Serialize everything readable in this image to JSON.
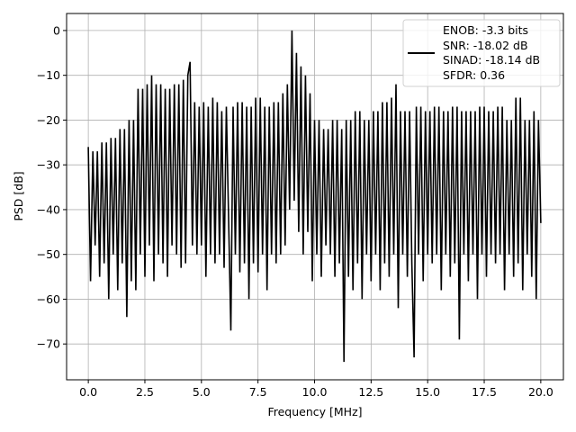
{
  "chart_data": {
    "type": "line",
    "title": "",
    "xlabel": "Frequency [MHz]",
    "ylabel": "PSD [dB]",
    "xlim": [
      -0.96,
      21.0
    ],
    "ylim": [
      -78,
      3.8
    ],
    "grid": true,
    "legend_placement": "top-right",
    "line_color": "#000000",
    "x_ticks": [
      "0.0",
      "2.5",
      "5.0",
      "7.5",
      "10.0",
      "12.5",
      "15.0",
      "17.5",
      "20.0"
    ],
    "x_tick_values": [
      0,
      2.5,
      5,
      7.5,
      10,
      12.5,
      15,
      17.5,
      20
    ],
    "y_ticks": [
      "0",
      "−10",
      "−20",
      "−30",
      "−40",
      "−50",
      "−60",
      "−70"
    ],
    "y_tick_values": [
      0,
      -10,
      -20,
      -30,
      -40,
      -50,
      -60,
      -70
    ],
    "legend": [
      "ENOB: -3.3 bits",
      "SNR: -18.02 dB",
      "SINAD: -18.14 dB",
      "SFDR: 0.36"
    ],
    "points": [
      [
        0,
        -26
      ],
      [
        0.1,
        -56
      ],
      [
        0.2,
        -27
      ],
      [
        0.3,
        -48
      ],
      [
        0.4,
        -27
      ],
      [
        0.5,
        -55
      ],
      [
        0.6,
        -25
      ],
      [
        0.7,
        -52
      ],
      [
        0.8,
        -25
      ],
      [
        0.9,
        -60
      ],
      [
        1.0,
        -24
      ],
      [
        1.1,
        -50
      ],
      [
        1.2,
        -24
      ],
      [
        1.3,
        -58
      ],
      [
        1.4,
        -22
      ],
      [
        1.5,
        -52
      ],
      [
        1.6,
        -22
      ],
      [
        1.7,
        -64
      ],
      [
        1.8,
        -20
      ],
      [
        1.9,
        -56
      ],
      [
        2.0,
        -20
      ],
      [
        2.1,
        -58
      ],
      [
        2.2,
        -13
      ],
      [
        2.3,
        -50
      ],
      [
        2.4,
        -13
      ],
      [
        2.5,
        -55
      ],
      [
        2.6,
        -12
      ],
      [
        2.7,
        -48
      ],
      [
        2.8,
        -10
      ],
      [
        2.9,
        -56
      ],
      [
        3.0,
        -12
      ],
      [
        3.1,
        -50
      ],
      [
        3.2,
        -12
      ],
      [
        3.3,
        -52
      ],
      [
        3.4,
        -13
      ],
      [
        3.5,
        -55
      ],
      [
        3.6,
        -13
      ],
      [
        3.7,
        -48
      ],
      [
        3.8,
        -12
      ],
      [
        3.9,
        -50
      ],
      [
        4.0,
        -12
      ],
      [
        4.1,
        -53
      ],
      [
        4.2,
        -11
      ],
      [
        4.3,
        -52
      ],
      [
        4.4,
        -10
      ],
      [
        4.5,
        -7
      ],
      [
        4.6,
        -48
      ],
      [
        4.7,
        -16
      ],
      [
        4.8,
        -50
      ],
      [
        4.9,
        -17
      ],
      [
        5.0,
        -48
      ],
      [
        5.1,
        -16
      ],
      [
        5.2,
        -55
      ],
      [
        5.3,
        -17
      ],
      [
        5.4,
        -50
      ],
      [
        5.5,
        -15
      ],
      [
        5.6,
        -52
      ],
      [
        5.7,
        -16
      ],
      [
        5.8,
        -50
      ],
      [
        5.9,
        -18
      ],
      [
        6.0,
        -53
      ],
      [
        6.1,
        -17
      ],
      [
        6.3,
        -67
      ],
      [
        6.4,
        -17
      ],
      [
        6.5,
        -50
      ],
      [
        6.6,
        -16
      ],
      [
        6.7,
        -54
      ],
      [
        6.8,
        -16
      ],
      [
        6.9,
        -52
      ],
      [
        7.0,
        -17
      ],
      [
        7.1,
        -60
      ],
      [
        7.2,
        -17
      ],
      [
        7.3,
        -52
      ],
      [
        7.4,
        -15
      ],
      [
        7.5,
        -54
      ],
      [
        7.6,
        -15
      ],
      [
        7.7,
        -50
      ],
      [
        7.8,
        -17
      ],
      [
        7.9,
        -58
      ],
      [
        8.0,
        -17
      ],
      [
        8.1,
        -50
      ],
      [
        8.2,
        -16
      ],
      [
        8.3,
        -52
      ],
      [
        8.4,
        -16
      ],
      [
        8.5,
        -50
      ],
      [
        8.6,
        -14
      ],
      [
        8.7,
        -48
      ],
      [
        8.8,
        -12
      ],
      [
        8.9,
        -40
      ],
      [
        9.0,
        0
      ],
      [
        9.1,
        -38
      ],
      [
        9.2,
        -5
      ],
      [
        9.3,
        -45
      ],
      [
        9.4,
        -8
      ],
      [
        9.5,
        -50
      ],
      [
        9.6,
        -10
      ],
      [
        9.7,
        -45
      ],
      [
        9.8,
        -14
      ],
      [
        9.9,
        -56
      ],
      [
        10.0,
        -20
      ],
      [
        10.1,
        -50
      ],
      [
        10.2,
        -20
      ],
      [
        10.3,
        -55
      ],
      [
        10.4,
        -22
      ],
      [
        10.5,
        -48
      ],
      [
        10.6,
        -22
      ],
      [
        10.7,
        -50
      ],
      [
        10.8,
        -20
      ],
      [
        10.9,
        -55
      ],
      [
        11.0,
        -20
      ],
      [
        11.1,
        -52
      ],
      [
        11.2,
        -22
      ],
      [
        11.3,
        -74
      ],
      [
        11.4,
        -20
      ],
      [
        11.5,
        -55
      ],
      [
        11.6,
        -20
      ],
      [
        11.7,
        -58
      ],
      [
        11.8,
        -18
      ],
      [
        11.9,
        -52
      ],
      [
        12.0,
        -18
      ],
      [
        12.1,
        -60
      ],
      [
        12.2,
        -20
      ],
      [
        12.3,
        -50
      ],
      [
        12.4,
        -20
      ],
      [
        12.5,
        -56
      ],
      [
        12.6,
        -18
      ],
      [
        12.7,
        -50
      ],
      [
        12.8,
        -18
      ],
      [
        12.9,
        -58
      ],
      [
        13.0,
        -16
      ],
      [
        13.1,
        -52
      ],
      [
        13.2,
        -16
      ],
      [
        13.3,
        -55
      ],
      [
        13.4,
        -15
      ],
      [
        13.5,
        -50
      ],
      [
        13.6,
        -12
      ],
      [
        13.7,
        -62
      ],
      [
        13.8,
        -18
      ],
      [
        13.9,
        -50
      ],
      [
        14.0,
        -18
      ],
      [
        14.1,
        -55
      ],
      [
        14.2,
        -18
      ],
      [
        14.3,
        -52
      ],
      [
        14.4,
        -73
      ],
      [
        14.5,
        -17
      ],
      [
        14.6,
        -50
      ],
      [
        14.7,
        -17
      ],
      [
        14.8,
        -56
      ],
      [
        14.9,
        -18
      ],
      [
        15.0,
        -50
      ],
      [
        15.1,
        -18
      ],
      [
        15.2,
        -52
      ],
      [
        15.3,
        -17
      ],
      [
        15.4,
        -50
      ],
      [
        15.5,
        -17
      ],
      [
        15.6,
        -58
      ],
      [
        15.7,
        -18
      ],
      [
        15.8,
        -50
      ],
      [
        15.9,
        -18
      ],
      [
        16.0,
        -55
      ],
      [
        16.1,
        -17
      ],
      [
        16.2,
        -52
      ],
      [
        16.3,
        -17
      ],
      [
        16.4,
        -69
      ],
      [
        16.5,
        -18
      ],
      [
        16.6,
        -50
      ],
      [
        16.7,
        -18
      ],
      [
        16.8,
        -56
      ],
      [
        16.9,
        -18
      ],
      [
        17.0,
        -50
      ],
      [
        17.1,
        -18
      ],
      [
        17.2,
        -60
      ],
      [
        17.3,
        -17
      ],
      [
        17.4,
        -50
      ],
      [
        17.5,
        -17
      ],
      [
        17.6,
        -55
      ],
      [
        17.7,
        -18
      ],
      [
        17.8,
        -50
      ],
      [
        17.9,
        -18
      ],
      [
        18.0,
        -52
      ],
      [
        18.1,
        -17
      ],
      [
        18.2,
        -50
      ],
      [
        18.3,
        -17
      ],
      [
        18.4,
        -58
      ],
      [
        18.5,
        -20
      ],
      [
        18.6,
        -50
      ],
      [
        18.7,
        -20
      ],
      [
        18.8,
        -55
      ],
      [
        18.9,
        -15
      ],
      [
        19.0,
        -52
      ],
      [
        19.1,
        -15
      ],
      [
        19.2,
        -58
      ],
      [
        19.3,
        -20
      ],
      [
        19.4,
        -50
      ],
      [
        19.5,
        -20
      ],
      [
        19.6,
        -55
      ],
      [
        19.7,
        -18
      ],
      [
        19.8,
        -60
      ],
      [
        19.9,
        -20
      ],
      [
        20.0,
        -43
      ]
    ]
  }
}
